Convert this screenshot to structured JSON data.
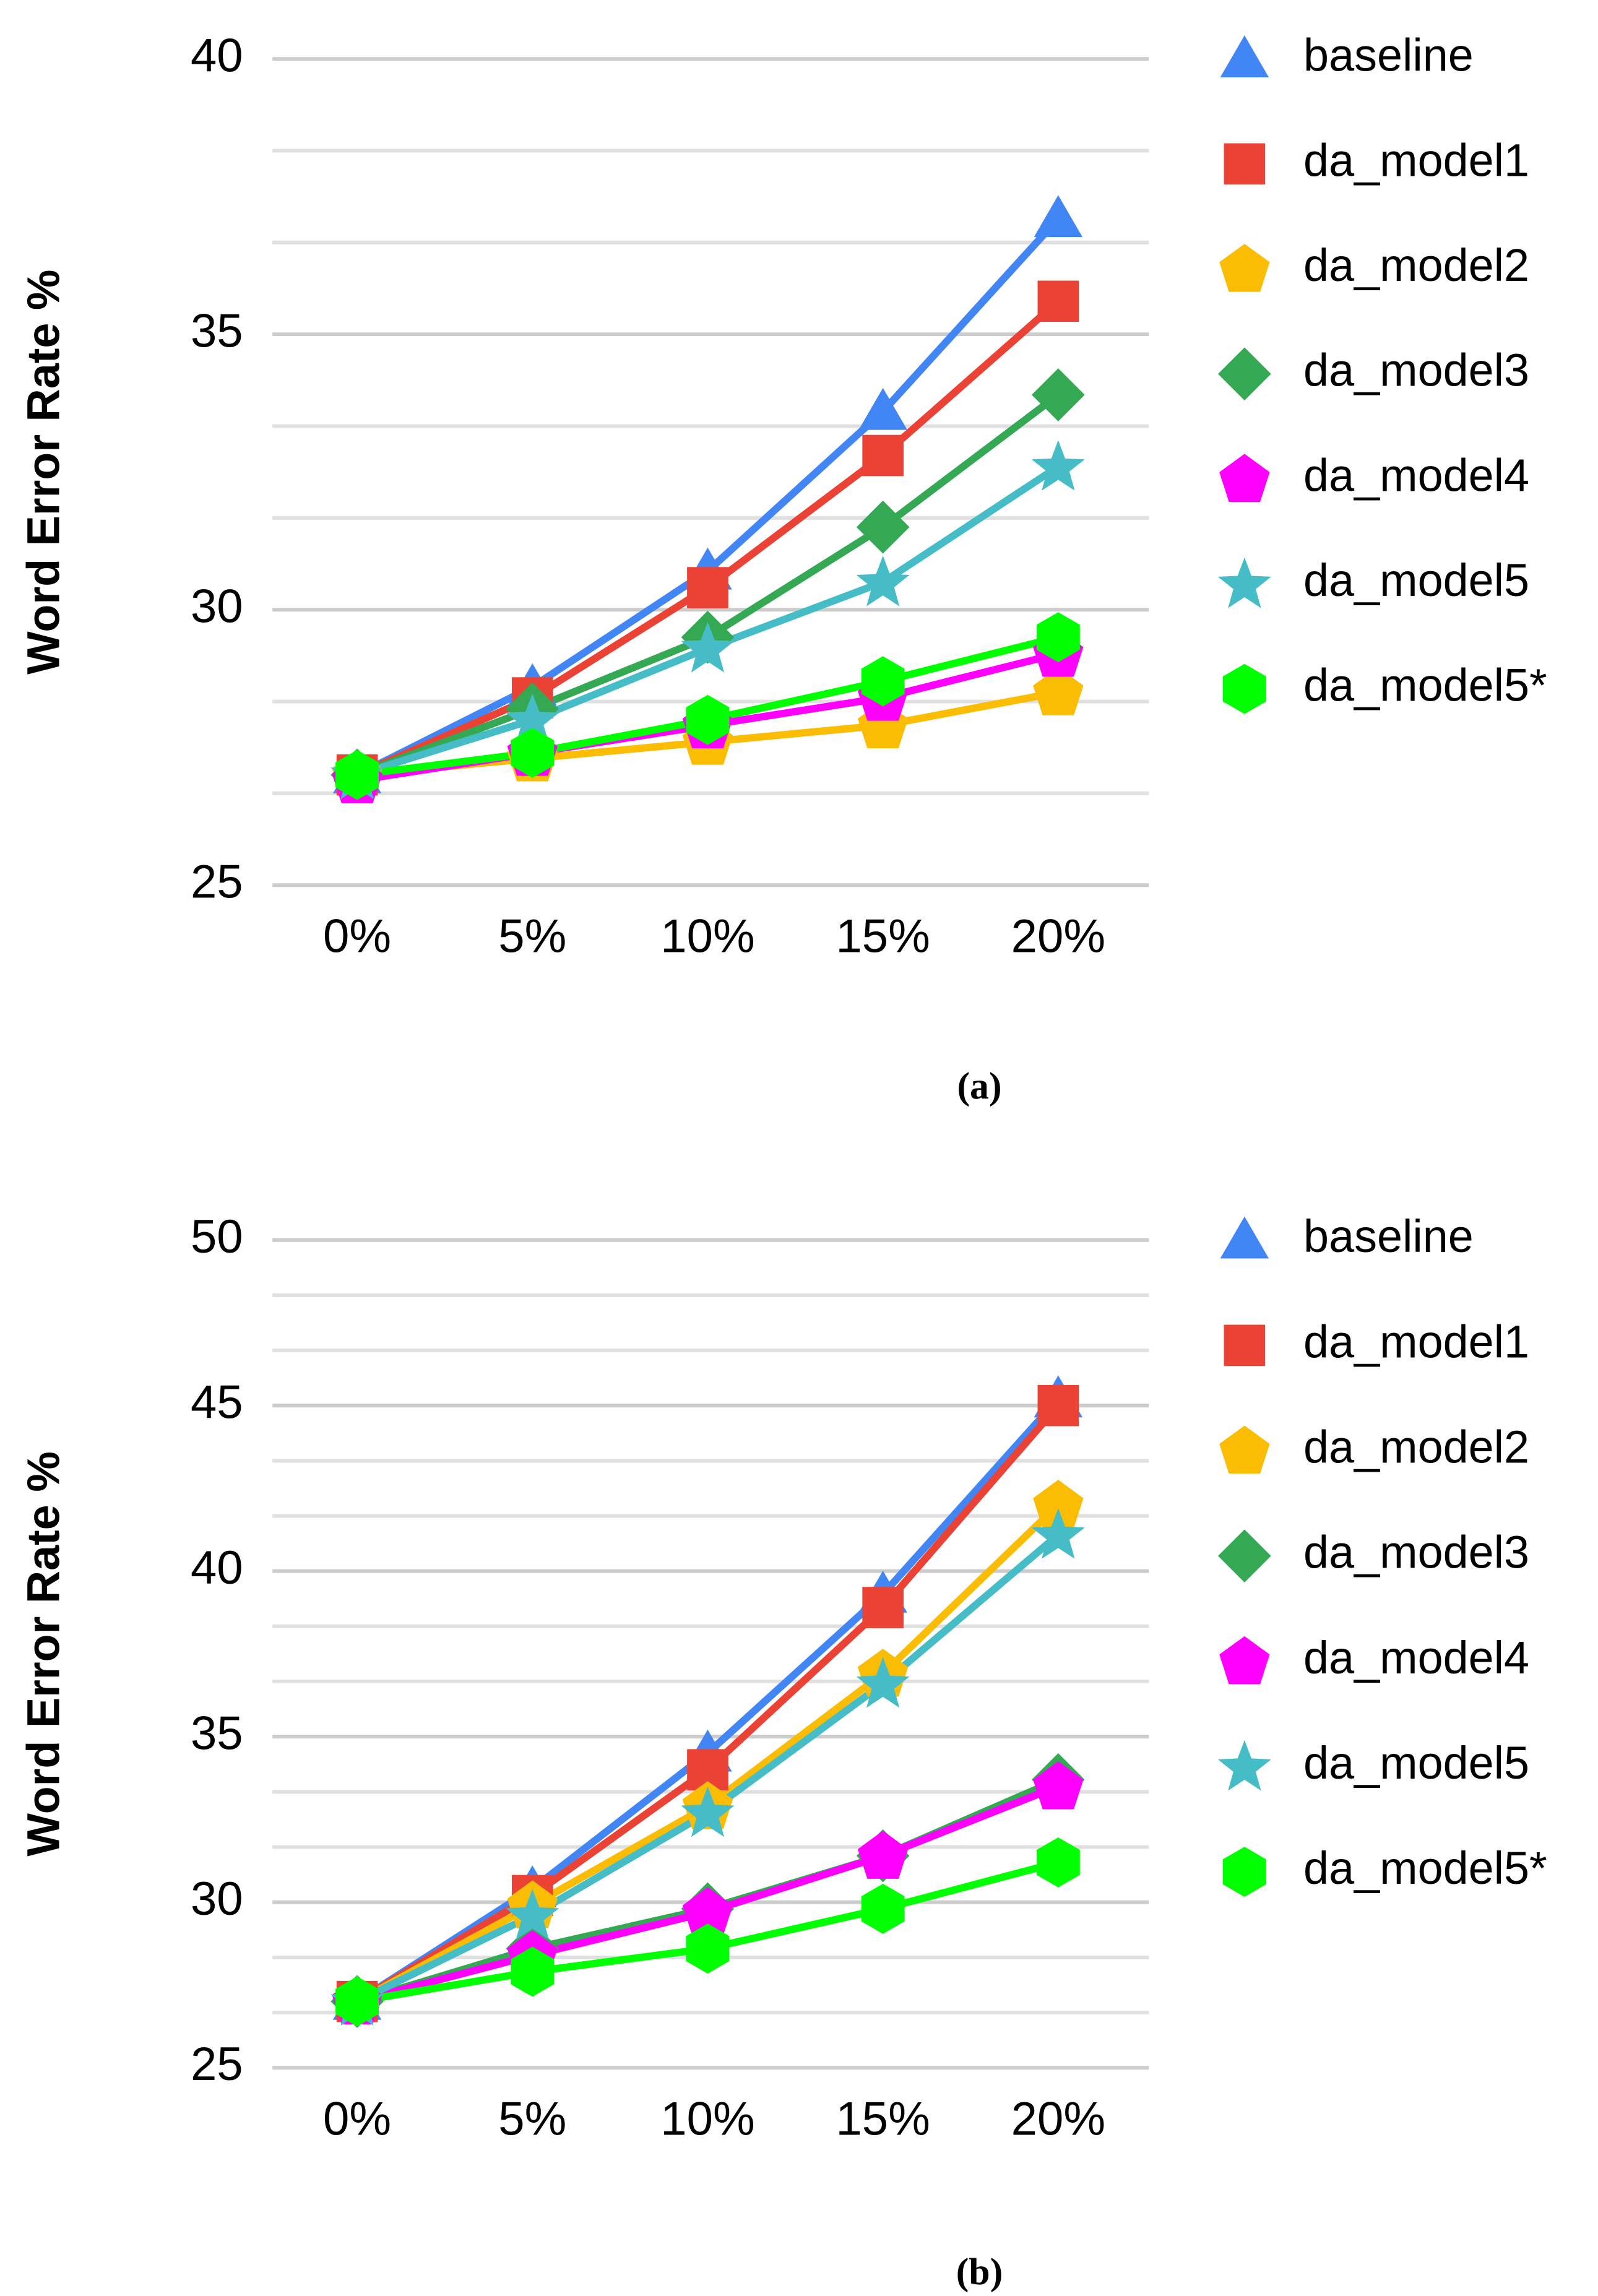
{
  "chart_data": [
    {
      "type": "line",
      "ylabel": "Word Error Rate %",
      "caption": "(a)",
      "categories": [
        "0%",
        "5%",
        "10%",
        "15%",
        "20%"
      ],
      "ylim": [
        25,
        40
      ],
      "yticks": [
        25,
        30,
        35,
        40
      ],
      "grid": true,
      "grid_subdivisions": 3,
      "legend": "right",
      "series": [
        {
          "name": "baseline",
          "color": "#4285f4",
          "marker": "triangle",
          "values": [
            27.0,
            28.6,
            30.7,
            33.6,
            37.1
          ]
        },
        {
          "name": "da_model1",
          "color": "#ea4335",
          "marker": "square",
          "values": [
            27.0,
            28.4,
            30.4,
            32.8,
            35.6
          ]
        },
        {
          "name": "da_model2",
          "color": "#fbbc04",
          "marker": "pentagon",
          "values": [
            27.0,
            27.3,
            27.6,
            27.9,
            28.5
          ]
        },
        {
          "name": "da_model3",
          "color": "#34a853",
          "marker": "diamond",
          "values": [
            27.0,
            28.2,
            29.5,
            31.5,
            33.9
          ]
        },
        {
          "name": "da_model4",
          "color": "#ff00ff",
          "marker": "pentagon",
          "values": [
            26.9,
            27.4,
            27.9,
            28.4,
            29.2
          ]
        },
        {
          "name": "da_model5",
          "color": "#46bdc6",
          "marker": "star",
          "values": [
            27.0,
            28.0,
            29.3,
            30.5,
            32.6
          ]
        },
        {
          "name": "da_model5*",
          "color": "#00ff00",
          "marker": "hexagon",
          "values": [
            27.0,
            27.4,
            28.0,
            28.7,
            29.5
          ]
        }
      ]
    },
    {
      "type": "line",
      "ylabel": "Word Error Rate %",
      "caption": "(b)",
      "categories": [
        "0%",
        "5%",
        "10%",
        "15%",
        "20%"
      ],
      "ylim": [
        25,
        50
      ],
      "yticks": [
        25,
        30,
        35,
        40,
        45,
        50
      ],
      "grid": true,
      "grid_subdivisions": 3,
      "legend": "right",
      "series": [
        {
          "name": "baseline",
          "color": "#4285f4",
          "marker": "triangle",
          "values": [
            27.0,
            30.4,
            34.5,
            39.3,
            45.2
          ]
        },
        {
          "name": "da_model1",
          "color": "#ea4335",
          "marker": "square",
          "values": [
            27.0,
            30.2,
            34.0,
            38.9,
            45.0
          ]
        },
        {
          "name": "da_model2",
          "color": "#fbbc04",
          "marker": "pentagon",
          "values": [
            27.0,
            29.9,
            32.9,
            36.9,
            42.0
          ]
        },
        {
          "name": "da_model3",
          "color": "#34a853",
          "marker": "diamond",
          "values": [
            27.0,
            28.6,
            29.8,
            31.4,
            33.7
          ]
        },
        {
          "name": "da_model4",
          "color": "#ff00ff",
          "marker": "pentagon",
          "values": [
            27.0,
            28.4,
            29.7,
            31.4,
            33.5
          ]
        },
        {
          "name": "da_model5",
          "color": "#46bdc6",
          "marker": "star",
          "values": [
            27.0,
            29.6,
            32.7,
            36.6,
            41.1
          ]
        },
        {
          "name": "da_model5*",
          "color": "#00ff00",
          "marker": "hexagon",
          "values": [
            27.0,
            27.9,
            28.6,
            29.8,
            31.2
          ]
        }
      ]
    }
  ]
}
